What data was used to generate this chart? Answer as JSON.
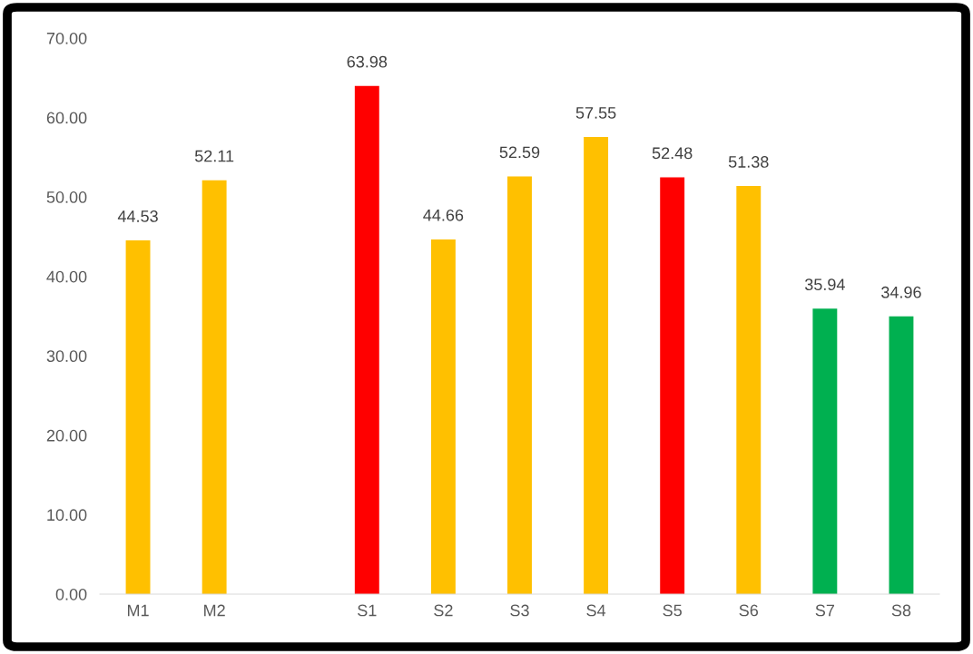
{
  "chart_data": {
    "type": "bar",
    "categories": [
      "M1",
      "M2",
      null,
      "S1",
      "S2",
      "S3",
      "S4",
      "S5",
      "S6",
      "S7",
      "S8"
    ],
    "values": [
      44.53,
      52.11,
      null,
      63.98,
      44.66,
      52.59,
      57.55,
      52.48,
      51.38,
      35.94,
      34.96
    ],
    "colors": [
      "#ffc000",
      "#ffc000",
      "#ffc000",
      "#ff0000",
      "#ffc000",
      "#ffc000",
      "#ffc000",
      "#ff0000",
      "#ffc000",
      "#00b050",
      "#00b050"
    ],
    "ylim": [
      0,
      70
    ],
    "yticks": [
      {
        "value": 0,
        "label": "0.00"
      },
      {
        "value": 10,
        "label": "10.00"
      },
      {
        "value": 20,
        "label": "20.00"
      },
      {
        "value": 30,
        "label": "30.00"
      },
      {
        "value": 40,
        "label": "40.00"
      },
      {
        "value": 50,
        "label": "50.00"
      },
      {
        "value": 60,
        "label": "60.00"
      },
      {
        "value": 70,
        "label": "70.00"
      }
    ],
    "grid": false,
    "legend": false,
    "data_labels": true
  }
}
